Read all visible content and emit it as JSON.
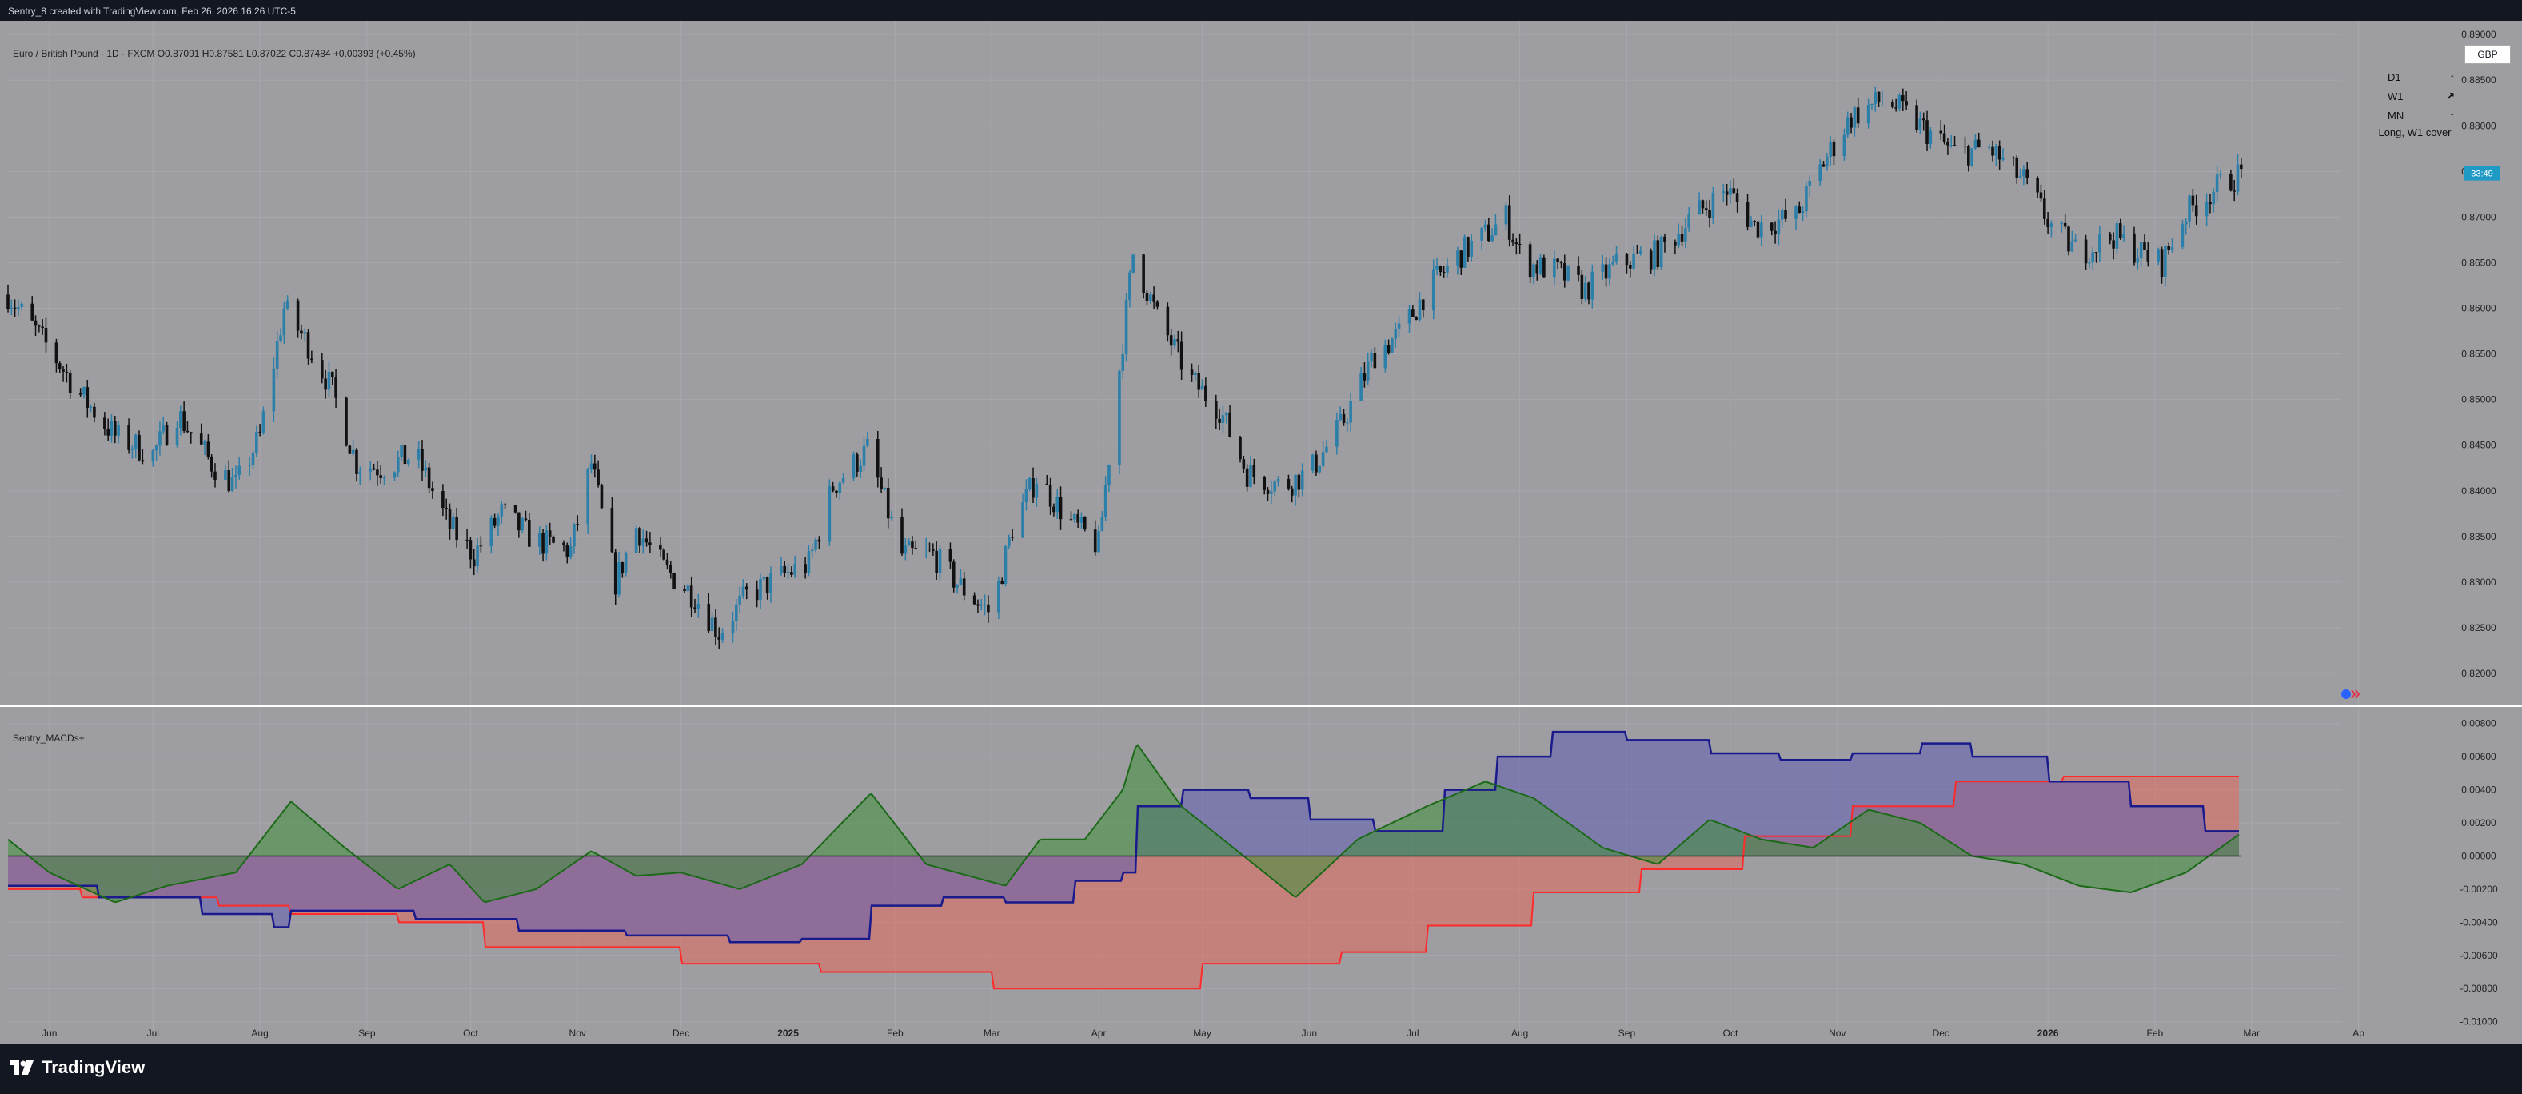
{
  "header": {
    "attribution": "Sentry_8 created with TradingView.com, Feb 26, 2026 16:26 UTC-5",
    "symbol_info": "Euro / British Pound · 1D · FXCM  O0.87091  H0.87581  L0.87022  C0.87484  +0.00393 (+0.45%)",
    "currency": "GBP",
    "last_price_label": "33:49"
  },
  "mtf_table": {
    "rows": [
      {
        "label": "D1",
        "arrow": "↑"
      },
      {
        "label": "W1",
        "arrow": "↗"
      },
      {
        "label": "MN",
        "arrow": "↑"
      }
    ],
    "summary": "Long, W1 cover"
  },
  "indicator": {
    "name": "Sentry_MACDs+"
  },
  "footer": {
    "brand": "TradingView"
  },
  "colors": {
    "background": "#9e9da2",
    "frame": "#131722",
    "candle_up": "#2b7fa8",
    "candle_down": "#111111",
    "osc_fill": "#3f8f3a",
    "osc_line": "#1c6a18",
    "blue_line": "#1a1a8c",
    "blue_fill": "#5a5ab5",
    "red_line": "#ff2a2a",
    "red_fill": "#e46a5c",
    "badge": "#1e9ac5"
  },
  "chart_data": [
    {
      "type": "candlestick",
      "title": "",
      "ylim": [
        0.8165,
        0.8915
      ],
      "y_ticks": [
        "0.89000",
        "0.88500",
        "0.88000",
        "0.87500",
        "0.87000",
        "0.86500",
        "0.86000",
        "0.85500",
        "0.85000",
        "0.84500",
        "0.84000",
        "0.83500",
        "0.83000",
        "0.82500",
        "0.82000"
      ],
      "x_ticks": [
        "Jun",
        "Jul",
        "Aug",
        "Sep",
        "Oct",
        "Nov",
        "Dec",
        "2025",
        "Feb",
        "Mar",
        "Apr",
        "May",
        "Jun",
        "Jul",
        "Aug",
        "Sep",
        "Oct",
        "Nov",
        "Dec",
        "2026",
        "Feb",
        "Mar",
        "Ap"
      ],
      "close_path": [
        [
          "2024-05-20",
          0.8615
        ],
        [
          "2024-06-01",
          0.8555
        ],
        [
          "2024-06-10",
          0.8505
        ],
        [
          "2024-06-20",
          0.846
        ],
        [
          "2024-07-01",
          0.844
        ],
        [
          "2024-07-08",
          0.8485
        ],
        [
          "2024-07-18",
          0.843
        ],
        [
          "2024-07-25",
          0.8405
        ],
        [
          "2024-08-01",
          0.846
        ],
        [
          "2024-08-08",
          0.86
        ],
        [
          "2024-08-15",
          0.856
        ],
        [
          "2024-08-22",
          0.851
        ],
        [
          "2024-08-29",
          0.843
        ],
        [
          "2024-09-05",
          0.8425
        ],
        [
          "2024-09-15",
          0.844
        ],
        [
          "2024-09-25",
          0.836
        ],
        [
          "2024-10-02",
          0.833
        ],
        [
          "2024-10-10",
          0.8375
        ],
        [
          "2024-10-20",
          0.8345
        ],
        [
          "2024-10-30",
          0.8335
        ],
        [
          "2024-11-05",
          0.843
        ],
        [
          "2024-11-12",
          0.83
        ],
        [
          "2024-11-18",
          0.836
        ],
        [
          "2024-11-26",
          0.8315
        ],
        [
          "2024-12-05",
          0.8285
        ],
        [
          "2024-12-12",
          0.8245
        ],
        [
          "2024-12-20",
          0.8285
        ],
        [
          "2025-01-01",
          0.831
        ],
        [
          "2025-01-07",
          0.832
        ],
        [
          "2025-01-14",
          0.8405
        ],
        [
          "2025-01-24",
          0.8445
        ],
        [
          "2025-02-03",
          0.833
        ],
        [
          "2025-02-12",
          0.833
        ],
        [
          "2025-02-20",
          0.8295
        ],
        [
          "2025-03-01",
          0.8265
        ],
        [
          "2025-03-07",
          0.836
        ],
        [
          "2025-03-14",
          0.8415
        ],
        [
          "2025-03-24",
          0.8365
        ],
        [
          "2025-04-01",
          0.834
        ],
        [
          "2025-04-05",
          0.847
        ],
        [
          "2025-04-11",
          0.866
        ],
        [
          "2025-04-18",
          0.859
        ],
        [
          "2025-04-28",
          0.852
        ],
        [
          "2025-05-06",
          0.849
        ],
        [
          "2025-05-14",
          0.842
        ],
        [
          "2025-05-24",
          0.8405
        ],
        [
          "2025-06-01",
          0.842
        ],
        [
          "2025-06-10",
          0.847
        ],
        [
          "2025-06-20",
          0.855
        ],
        [
          "2025-06-28",
          0.8575
        ],
        [
          "2025-07-05",
          0.862
        ],
        [
          "2025-07-15",
          0.866
        ],
        [
          "2025-07-22",
          0.868
        ],
        [
          "2025-07-28",
          0.87
        ],
        [
          "2025-08-02",
          0.865
        ],
        [
          "2025-08-12",
          0.864
        ],
        [
          "2025-08-20",
          0.862
        ],
        [
          "2025-08-30",
          0.865
        ],
        [
          "2025-09-10",
          0.866
        ],
        [
          "2025-09-20",
          0.87
        ],
        [
          "2025-09-30",
          0.873
        ],
        [
          "2025-10-08",
          0.869
        ],
        [
          "2025-10-20",
          0.87
        ],
        [
          "2025-10-28",
          0.876
        ],
        [
          "2025-11-05",
          0.881
        ],
        [
          "2025-11-15",
          0.883
        ],
        [
          "2025-11-25",
          0.88
        ],
        [
          "2025-12-05",
          0.877
        ],
        [
          "2025-12-15",
          0.8775
        ],
        [
          "2025-12-25",
          0.874
        ],
        [
          "2026-01-02",
          0.869
        ],
        [
          "2026-01-10",
          0.866
        ],
        [
          "2026-01-20",
          0.868
        ],
        [
          "2026-01-28",
          0.866
        ],
        [
          "2026-02-03",
          0.865
        ],
        [
          "2026-02-10",
          0.8705
        ],
        [
          "2026-02-18",
          0.873
        ],
        [
          "2026-02-26",
          0.8748
        ]
      ]
    },
    {
      "type": "area",
      "title": "Sentry_MACDs+",
      "ylim": [
        -0.0105,
        0.009
      ],
      "y_ticks": [
        "0.00800",
        "0.00600",
        "0.00400",
        "0.00200",
        "0.00000",
        "-0.00200",
        "-0.00400",
        "-0.00600",
        "-0.00800",
        "-0.01000"
      ],
      "series": [
        {
          "name": "",
          "values": [
            [
              "2024-05-20",
              0.001
            ],
            [
              "2024-06-01",
              -0.001
            ],
            [
              "2024-06-20",
              -0.0028
            ],
            [
              "2024-07-05",
              -0.0018
            ],
            [
              "2024-07-25",
              -0.001
            ],
            [
              "2024-08-10",
              0.0033
            ],
            [
              "2024-08-25",
              0.0006
            ],
            [
              "2024-09-10",
              -0.002
            ],
            [
              "2024-09-25",
              -0.0005
            ],
            [
              "2024-10-05",
              -0.0028
            ],
            [
              "2024-10-20",
              -0.002
            ],
            [
              "2024-11-05",
              0.0003
            ],
            [
              "2024-11-18",
              -0.0012
            ],
            [
              "2024-12-01",
              -0.001
            ],
            [
              "2024-12-18",
              -0.002
            ],
            [
              "2025-01-05",
              -0.0005
            ],
            [
              "2025-01-25",
              0.0038
            ],
            [
              "2025-02-10",
              -0.0005
            ],
            [
              "2025-03-05",
              -0.0018
            ],
            [
              "2025-03-15",
              0.001
            ],
            [
              "2025-03-28",
              0.001
            ],
            [
              "2025-04-08",
              0.004
            ],
            [
              "2025-04-12",
              0.0068
            ],
            [
              "2025-04-25",
              0.003
            ],
            [
              "2025-05-10",
              0.0005
            ],
            [
              "2025-05-28",
              -0.0025
            ],
            [
              "2025-06-15",
              0.001
            ],
            [
              "2025-07-05",
              0.003
            ],
            [
              "2025-07-22",
              0.0045
            ],
            [
              "2025-08-05",
              0.0035
            ],
            [
              "2025-08-25",
              0.0005
            ],
            [
              "2025-09-10",
              -0.0005
            ],
            [
              "2025-09-25",
              0.0022
            ],
            [
              "2025-10-10",
              0.001
            ],
            [
              "2025-10-25",
              0.0005
            ],
            [
              "2025-11-10",
              0.0028
            ],
            [
              "2025-11-25",
              0.002
            ],
            [
              "2025-12-10",
              0.0
            ],
            [
              "2025-12-25",
              -0.0005
            ],
            [
              "2026-01-10",
              -0.0018
            ],
            [
              "2026-01-25",
              -0.0022
            ],
            [
              "2026-02-10",
              -0.001
            ],
            [
              "2026-02-26",
              0.0014
            ]
          ]
        },
        {
          "name": "",
          "values": [
            [
              "2024-05-20",
              -0.0018
            ],
            [
              "2024-06-15",
              -0.0025
            ],
            [
              "2024-07-15",
              -0.0035
            ],
            [
              "2024-08-05",
              -0.0043
            ],
            [
              "2024-08-10",
              -0.0033
            ],
            [
              "2024-09-15",
              -0.0038
            ],
            [
              "2024-10-15",
              -0.0045
            ],
            [
              "2024-11-15",
              -0.0048
            ],
            [
              "2024-12-15",
              -0.0052
            ],
            [
              "2025-01-05",
              -0.005
            ],
            [
              "2025-01-25",
              -0.003
            ],
            [
              "2025-02-15",
              -0.0025
            ],
            [
              "2025-03-05",
              -0.0028
            ],
            [
              "2025-03-25",
              -0.0015
            ],
            [
              "2025-04-08",
              -0.001
            ],
            [
              "2025-04-12",
              0.003
            ],
            [
              "2025-04-25",
              0.004
            ],
            [
              "2025-05-15",
              0.0035
            ],
            [
              "2025-06-01",
              0.0022
            ],
            [
              "2025-06-20",
              0.0015
            ],
            [
              "2025-07-10",
              0.004
            ],
            [
              "2025-07-25",
              0.006
            ],
            [
              "2025-08-10",
              0.0075
            ],
            [
              "2025-09-01",
              0.007
            ],
            [
              "2025-09-25",
              0.0062
            ],
            [
              "2025-10-15",
              0.0058
            ],
            [
              "2025-11-05",
              0.0062
            ],
            [
              "2025-11-25",
              0.0068
            ],
            [
              "2025-12-10",
              0.006
            ],
            [
              "2026-01-01",
              0.0045
            ],
            [
              "2026-01-25",
              0.003
            ],
            [
              "2026-02-15",
              0.0015
            ],
            [
              "2026-02-26",
              0.0013
            ]
          ]
        },
        {
          "name": "",
          "values": [
            [
              "2024-05-20",
              -0.002
            ],
            [
              "2024-06-10",
              -0.0025
            ],
            [
              "2024-07-20",
              -0.003
            ],
            [
              "2024-08-10",
              -0.0035
            ],
            [
              "2024-09-10",
              -0.004
            ],
            [
              "2024-10-05",
              -0.0055
            ],
            [
              "2024-12-01",
              -0.0065
            ],
            [
              "2025-01-10",
              -0.007
            ],
            [
              "2025-03-01",
              -0.008
            ],
            [
              "2025-04-15",
              -0.008
            ],
            [
              "2025-05-01",
              -0.0065
            ],
            [
              "2025-06-10",
              -0.0058
            ],
            [
              "2025-07-05",
              -0.0042
            ],
            [
              "2025-08-05",
              -0.0022
            ],
            [
              "2025-09-05",
              -0.0008
            ],
            [
              "2025-10-05",
              0.0012
            ],
            [
              "2025-11-05",
              0.003
            ],
            [
              "2025-12-05",
              0.0045
            ],
            [
              "2026-01-05",
              0.0048
            ],
            [
              "2026-02-26",
              0.0048
            ]
          ]
        }
      ]
    }
  ]
}
